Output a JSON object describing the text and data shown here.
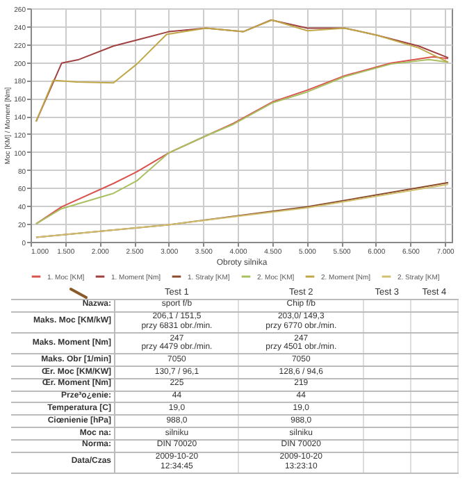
{
  "chart_data": [
    {
      "type": "line",
      "xlabel": "Obroty silnika",
      "ylabel": "Moc [KM] / Moment [Nm]",
      "xlim": [
        1000,
        7100
      ],
      "ylim": [
        0,
        260
      ],
      "xticks": [
        {
          "value": 1000,
          "label": "1.000"
        },
        {
          "value": 1500,
          "label": "1.500"
        },
        {
          "value": 2000,
          "label": "2.000"
        },
        {
          "value": 2500,
          "label": "2.500"
        },
        {
          "value": 3000,
          "label": "3.000"
        },
        {
          "value": 3500,
          "label": "3.500"
        },
        {
          "value": 4000,
          "label": "4.000"
        },
        {
          "value": 4500,
          "label": "4.500"
        },
        {
          "value": 5000,
          "label": "5.000"
        },
        {
          "value": 5500,
          "label": "5.500"
        },
        {
          "value": 6000,
          "label": "6.000"
        },
        {
          "value": 6500,
          "label": "6.500"
        },
        {
          "value": 7000,
          "label": "7.000"
        }
      ],
      "yticks": [
        0,
        20,
        40,
        60,
        80,
        100,
        120,
        140,
        160,
        180,
        200,
        220,
        240,
        260
      ],
      "grid": true,
      "legend": "bottom",
      "marker": "none",
      "line_style": "solid",
      "series": [
        {
          "name": "1. Moc [KM]",
          "color": "#d9534f",
          "x": [
            1080,
            1450,
            2200,
            2540,
            3000,
            3540,
            3940,
            4510,
            5010,
            5550,
            6220,
            6830,
            7050
          ],
          "values": [
            20,
            39,
            65,
            78,
            99,
            118,
            132,
            156,
            169,
            185,
            199,
            206,
            204
          ]
        },
        {
          "name": "1. Moment [Nm]",
          "color": "#a04040",
          "x": [
            1080,
            1450,
            1700,
            2200,
            2600,
            3000,
            3540,
            4080,
            4480,
            5010,
            5550,
            6020,
            6620,
            7050
          ],
          "values": [
            134,
            199,
            203,
            218,
            226,
            234,
            238,
            234,
            247,
            238,
            238,
            230,
            218,
            205
          ]
        },
        {
          "name": "1. Straty [KM]",
          "color": "#8b4a2b",
          "x": [
            1080,
            3000,
            5010,
            7050
          ],
          "values": [
            5,
            19,
            39,
            66
          ]
        },
        {
          "name": "2. Moc [KM]",
          "color": "#a8c060",
          "x": [
            1080,
            1450,
            2200,
            2540,
            3000,
            3540,
            3940,
            4510,
            5010,
            5550,
            6220,
            6770,
            7050
          ],
          "values": [
            20,
            37,
            54,
            68,
            99,
            118,
            131,
            155,
            167,
            184,
            198,
            203,
            200
          ]
        },
        {
          "name": "2. Moment [Nm]",
          "color": "#c0a848",
          "x": [
            1080,
            1330,
            1670,
            2200,
            2540,
            2970,
            3540,
            4080,
            4500,
            5010,
            5550,
            6020,
            6620,
            7050
          ],
          "values": [
            134,
            180,
            178,
            177,
            198,
            231,
            238,
            234,
            247,
            235,
            238,
            230,
            216,
            200
          ]
        },
        {
          "name": "2. Straty [KM]",
          "color": "#d0c070",
          "x": [
            1080,
            3000,
            5010,
            7050
          ],
          "values": [
            5,
            19,
            38,
            64
          ]
        }
      ]
    },
    {
      "type": "other",
      "categories": [
        "Test 1",
        "Test 2",
        "Test 3",
        "Test 4"
      ],
      "y_categories": [
        "Nazwa:",
        "Maks. Moc [KM/kW]",
        "Maks. Moment [Nm]",
        "Maks. Obr [1/min]",
        "Œr. Moc [KM/KW]",
        "Œr. Moment [Nm]",
        "Prze³o¿enie:",
        "Temperatura [C]",
        "Ciœnienie [hPa]",
        "Moc na:",
        "Norma:",
        "Data/Czas"
      ],
      "cell_labels": [
        [
          "sport f/b",
          "Chip f/b",
          null,
          null
        ],
        [
          "206,1 / 151,5\nprzy 6831 obr./min.",
          "203,0/ 149,3\nprzy 6770 obr./min.",
          null,
          null
        ],
        [
          "247\nprzy 4479 obr./min.",
          "247\nprzy 4501 obr./min.",
          null,
          null
        ],
        [
          "7050",
          "7050",
          null,
          null
        ],
        [
          "130,7 / 96,1",
          "128,6 / 94,6",
          null,
          null
        ],
        [
          "225",
          "219",
          null,
          null
        ],
        [
          "44",
          "44",
          null,
          null
        ],
        [
          "19,0",
          "19,0",
          null,
          null
        ],
        [
          "988,0",
          "988,0",
          null,
          null
        ],
        [
          "silniku",
          "silniku",
          null,
          null
        ],
        [
          "DIN 70020",
          "DIN 70020",
          null,
          null
        ],
        [
          "2009-10-20\n12:34:45",
          "2009-10-20\n13:23:10",
          null,
          null
        ]
      ]
    }
  ]
}
